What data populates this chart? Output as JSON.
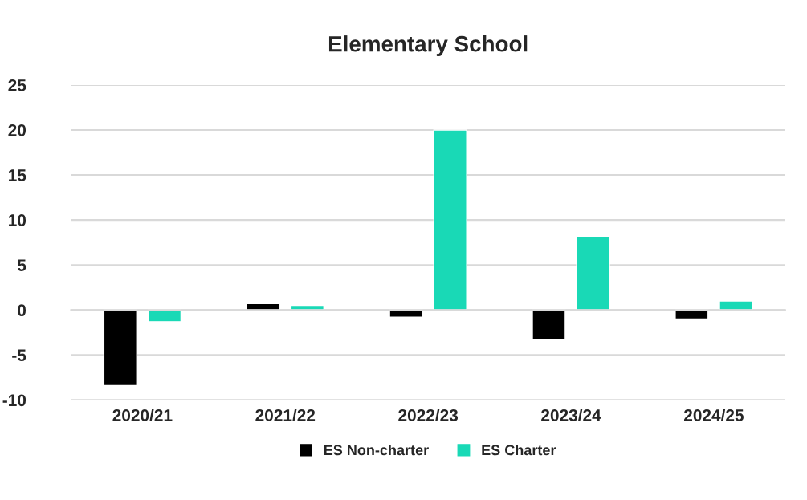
{
  "chart_data": {
    "type": "bar",
    "title": "Elementary School",
    "categories": [
      "2020/21",
      "2021/22",
      "2022/23",
      "2023/24",
      "2024/25"
    ],
    "series": [
      {
        "name": "ES Non-charter",
        "color": "#000000",
        "values": [
          -8.4,
          0.7,
          -0.8,
          -3.3,
          -1.0
        ]
      },
      {
        "name": "ES Charter",
        "color": "#19d9b6",
        "values": [
          -1.3,
          0.5,
          20,
          8.2,
          1.0
        ]
      }
    ],
    "ylim": [
      -10,
      25
    ],
    "yticks": [
      -10,
      -5,
      0,
      5,
      10,
      15,
      20,
      25
    ],
    "grid": "y",
    "legend": "bottom"
  }
}
